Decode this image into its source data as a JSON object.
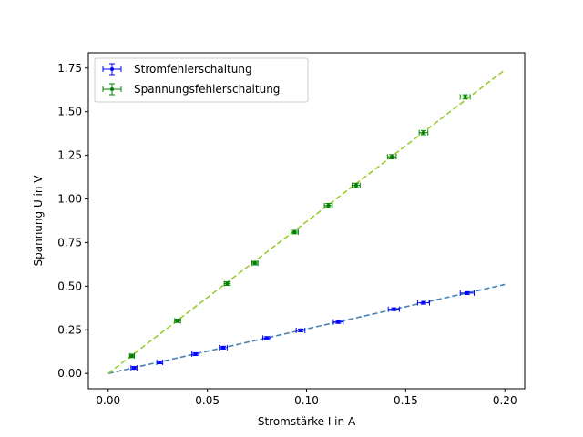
{
  "chart_data": {
    "type": "scatter",
    "title": "",
    "xlabel": "Stromstärke I in A",
    "ylabel": "Spannung U in V",
    "xlim": [
      -0.01,
      0.21
    ],
    "ylim": [
      -0.0875,
      1.8375
    ],
    "x_ticks": [
      0.0,
      0.05,
      0.1,
      0.15,
      0.2
    ],
    "x_tick_labels": [
      "0.00",
      "0.05",
      "0.10",
      "0.15",
      "0.20"
    ],
    "y_ticks": [
      0.0,
      0.25,
      0.5,
      0.75,
      1.0,
      1.25,
      1.5,
      1.75
    ],
    "y_tick_labels": [
      "0.00",
      "0.25",
      "0.50",
      "0.75",
      "1.00",
      "1.25",
      "1.50",
      "1.75"
    ],
    "grid": false,
    "legend_position": "top-left",
    "series": [
      {
        "name": "Stromfehlerschaltung",
        "color": "#0000ff",
        "fit_color": "#4682b4",
        "fit": {
          "x": [
            0.0,
            0.2
          ],
          "y": [
            0.0,
            0.51
          ]
        },
        "points": [
          {
            "x": 0.013,
            "y": 0.032,
            "xerr": 0.0015,
            "yerr": 0.008
          },
          {
            "x": 0.026,
            "y": 0.064,
            "xerr": 0.0015,
            "yerr": 0.008
          },
          {
            "x": 0.044,
            "y": 0.111,
            "xerr": 0.0018,
            "yerr": 0.008
          },
          {
            "x": 0.058,
            "y": 0.148,
            "xerr": 0.002,
            "yerr": 0.008
          },
          {
            "x": 0.08,
            "y": 0.203,
            "xerr": 0.002,
            "yerr": 0.008
          },
          {
            "x": 0.097,
            "y": 0.247,
            "xerr": 0.0022,
            "yerr": 0.008
          },
          {
            "x": 0.116,
            "y": 0.295,
            "xerr": 0.0025,
            "yerr": 0.008
          },
          {
            "x": 0.144,
            "y": 0.368,
            "xerr": 0.0028,
            "yerr": 0.008
          },
          {
            "x": 0.159,
            "y": 0.405,
            "xerr": 0.003,
            "yerr": 0.008
          },
          {
            "x": 0.181,
            "y": 0.461,
            "xerr": 0.0035,
            "yerr": 0.008
          }
        ]
      },
      {
        "name": "Spannungsfehlerschaltung",
        "color": "#008000",
        "fit_color": "#9acd32",
        "fit": {
          "x": [
            0.0,
            0.2
          ],
          "y": [
            0.0,
            1.74
          ]
        },
        "points": [
          {
            "x": 0.012,
            "y": 0.101,
            "xerr": 0.0012,
            "yerr": 0.01
          },
          {
            "x": 0.035,
            "y": 0.302,
            "xerr": 0.0015,
            "yerr": 0.01
          },
          {
            "x": 0.06,
            "y": 0.515,
            "xerr": 0.0015,
            "yerr": 0.01
          },
          {
            "x": 0.074,
            "y": 0.632,
            "xerr": 0.0015,
            "yerr": 0.01
          },
          {
            "x": 0.094,
            "y": 0.81,
            "xerr": 0.0018,
            "yerr": 0.01
          },
          {
            "x": 0.111,
            "y": 0.962,
            "xerr": 0.002,
            "yerr": 0.012
          },
          {
            "x": 0.125,
            "y": 1.078,
            "xerr": 0.002,
            "yerr": 0.012
          },
          {
            "x": 0.143,
            "y": 1.242,
            "xerr": 0.0022,
            "yerr": 0.012
          },
          {
            "x": 0.159,
            "y": 1.38,
            "xerr": 0.0022,
            "yerr": 0.012
          },
          {
            "x": 0.18,
            "y": 1.585,
            "xerr": 0.0025,
            "yerr": 0.012
          }
        ]
      }
    ]
  }
}
